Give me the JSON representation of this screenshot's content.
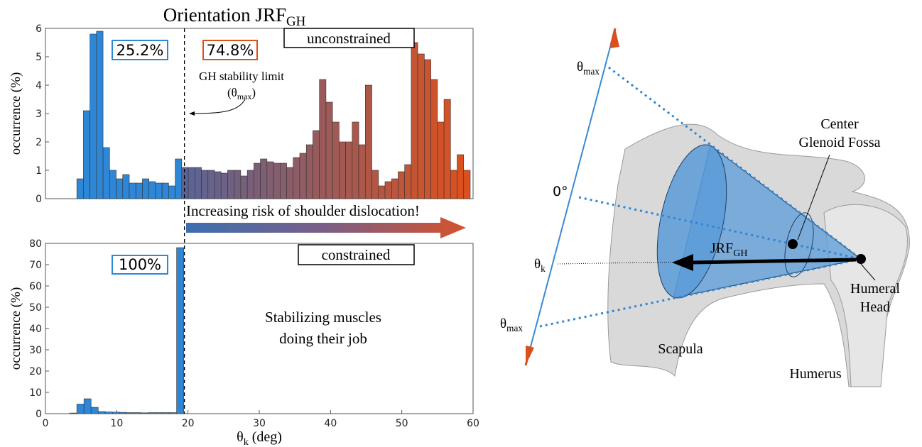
{
  "chart_data": [
    {
      "type": "histogram",
      "title": {
        "text": "Orientation JRF",
        "sub": "GH"
      },
      "ylabel": "occurrence (%)",
      "bins": [
        4.4,
        5.32,
        6.24,
        7.16,
        8.08,
        9.0,
        9.92,
        10.84,
        11.76,
        12.68,
        13.6,
        14.52,
        15.44,
        16.36,
        17.28,
        18.2,
        19.12,
        20.04,
        20.96,
        21.88,
        22.8,
        23.72,
        24.64,
        25.56,
        26.48,
        27.4,
        28.32,
        29.24,
        30.16,
        31.08,
        32.0,
        32.92,
        33.84,
        34.76,
        35.68,
        36.6,
        37.52,
        38.44,
        39.36,
        40.28,
        41.2,
        42.12,
        43.04,
        43.96,
        44.88,
        45.8,
        46.72,
        47.64,
        48.56,
        49.48,
        50.4,
        51.32,
        52.24,
        53.16,
        54.08,
        55.0,
        55.92,
        56.84,
        57.76,
        58.68,
        59.6
      ],
      "values": [
        0.7,
        3.1,
        5.8,
        5.9,
        1.8,
        1.0,
        0.7,
        0.85,
        0.55,
        0.55,
        0.7,
        0.6,
        0.55,
        0.55,
        0.45,
        1.4,
        1.1,
        1.1,
        1.1,
        1.0,
        1.0,
        0.95,
        0.9,
        1.0,
        1.0,
        0.8,
        1.0,
        1.25,
        1.4,
        1.3,
        1.25,
        1.25,
        1.1,
        1.45,
        1.6,
        1.9,
        2.4,
        4.2,
        3.4,
        2.7,
        2.0,
        2.0,
        2.7,
        1.9,
        4.0,
        1.0,
        0.45,
        0.6,
        0.7,
        0.95,
        1.2,
        5.5,
        5.1,
        4.9,
        4.2,
        2.7,
        3.5,
        1.0,
        1.55,
        1.0
      ],
      "colors": [
        "#2e86d6",
        "#5a6496",
        "#e0501a"
      ],
      "stability_limit": 19.5,
      "xlim": [
        0,
        60
      ],
      "ylim": [
        0,
        6
      ],
      "yticks": [
        0,
        1,
        2,
        3,
        4,
        5,
        6
      ],
      "annotations": {
        "left_share": "25.2%",
        "right_share": "74.8%",
        "mode": "unconstrained",
        "limit_label": "GH stability limit",
        "limit_symbol": {
          "text": "(θ",
          "sub": "max",
          "suffix": ")"
        },
        "risk": "Increasing risk of shoulder dislocation!"
      }
    },
    {
      "type": "histogram",
      "ylabel": "occurrence (%)",
      "xlabel": {
        "text": "θ",
        "sub": "k",
        "suffix": " (deg)"
      },
      "bins": [
        3.4,
        4.4,
        5.4,
        6.4,
        7.4,
        8.4,
        9.4,
        10.4,
        11.4,
        12.4,
        13.4,
        14.4,
        15.4,
        16.4,
        17.4,
        18.4,
        19.4
      ],
      "values": [
        0.3,
        4.5,
        7,
        3,
        1,
        0.8,
        0.7,
        0.6,
        0.5,
        0.5,
        0.4,
        0.5,
        0.5,
        0.5,
        0.5,
        78
      ],
      "colors": [
        "#2e86d6"
      ],
      "xlim": [
        0,
        60
      ],
      "xticks": [
        0,
        10,
        20,
        30,
        40,
        50,
        60
      ],
      "ylim": [
        0,
        80
      ],
      "yticks": [
        0,
        10,
        20,
        30,
        40,
        50,
        60,
        70,
        80
      ],
      "annotations": {
        "share": "100%",
        "mode": "constrained",
        "note_line1": "Stabilizing muscles",
        "note_line2": "doing their job"
      }
    }
  ],
  "diagram": {
    "theta_max_top": {
      "text": "θ",
      "sub": "max"
    },
    "zero": "0°",
    "theta_k": {
      "text": "θ",
      "sub": "k"
    },
    "theta_max_bottom": {
      "text": "θ",
      "sub": "max"
    },
    "glenoid_line1": "Center",
    "glenoid_line2": "Glenoid Fossa",
    "force": {
      "text": "JRF",
      "sub": "GH"
    },
    "head_line1": "Humeral",
    "head_line2": "Head",
    "scapula": "Scapula",
    "humerus": "Humerus"
  }
}
